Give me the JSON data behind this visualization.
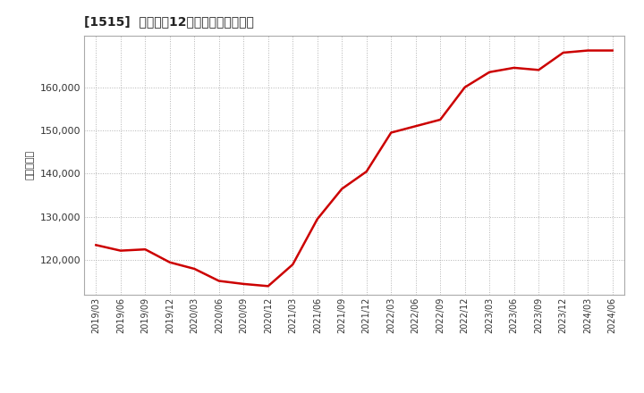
{
  "title": "[1515]  売上高の12か月移動合計の推移",
  "ylabel": "（百万円）",
  "line_color": "#cc0000",
  "line_width": 1.8,
  "background_color": "#ffffff",
  "plot_bg_color": "#ffffff",
  "grid_color": "#aaaaaa",
  "ylim": [
    112000,
    172000
  ],
  "yticks": [
    120000,
    130000,
    140000,
    150000,
    160000
  ],
  "x_labels": [
    "2019/03",
    "2019/06",
    "2019/09",
    "2019/12",
    "2020/03",
    "2020/06",
    "2020/09",
    "2020/12",
    "2021/03",
    "2021/06",
    "2021/09",
    "2021/12",
    "2022/03",
    "2022/06",
    "2022/09",
    "2022/12",
    "2023/03",
    "2023/06",
    "2023/09",
    "2023/12",
    "2024/03",
    "2024/06"
  ],
  "data": [
    [
      "2019/03",
      123500
    ],
    [
      "2019/06",
      122200
    ],
    [
      "2019/09",
      122500
    ],
    [
      "2019/12",
      119500
    ],
    [
      "2020/03",
      118000
    ],
    [
      "2020/06",
      115200
    ],
    [
      "2020/09",
      114500
    ],
    [
      "2020/12",
      114000
    ],
    [
      "2021/03",
      119000
    ],
    [
      "2021/06",
      129500
    ],
    [
      "2021/09",
      136500
    ],
    [
      "2021/12",
      140500
    ],
    [
      "2022/03",
      149500
    ],
    [
      "2022/06",
      151000
    ],
    [
      "2022/09",
      152500
    ],
    [
      "2022/12",
      160000
    ],
    [
      "2023/03",
      163500
    ],
    [
      "2023/06",
      164500
    ],
    [
      "2023/09",
      164000
    ],
    [
      "2023/12",
      168000
    ],
    [
      "2024/03",
      168500
    ],
    [
      "2024/06",
      168500
    ]
  ]
}
